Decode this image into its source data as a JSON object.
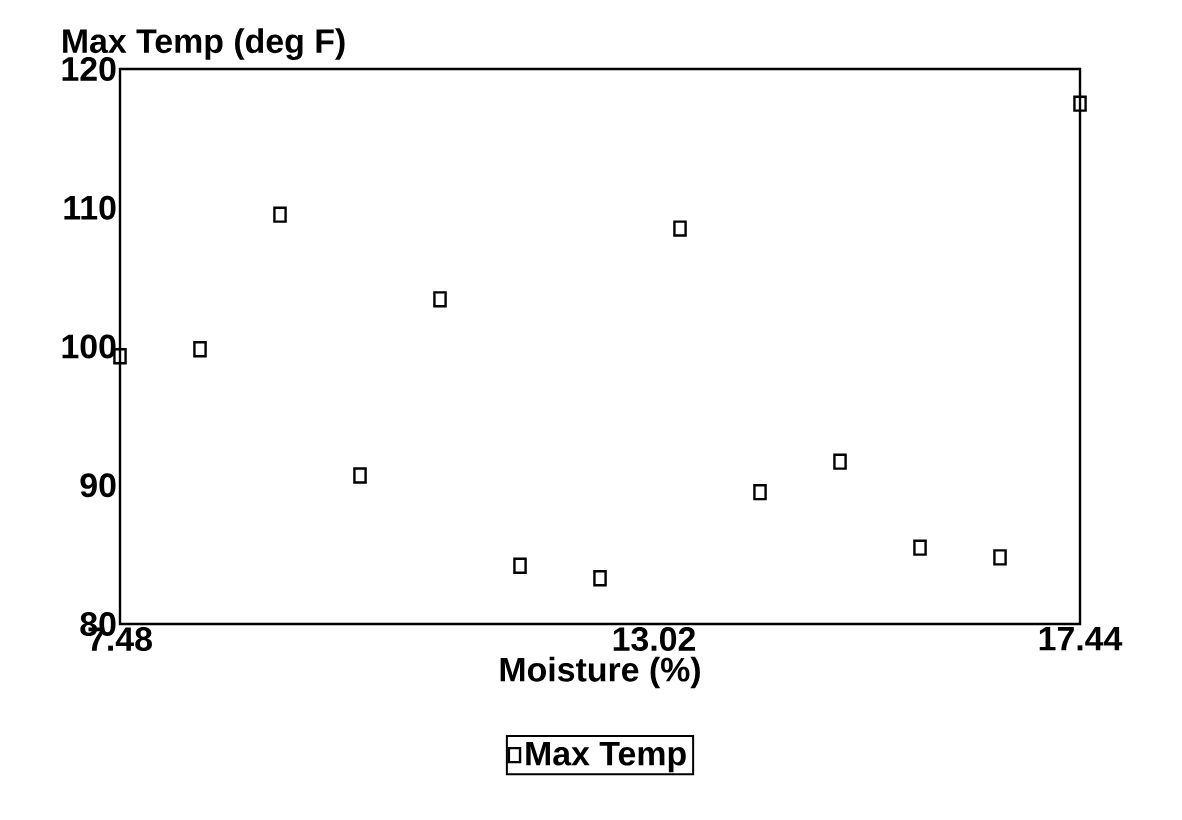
{
  "chart_data": {
    "type": "scatter",
    "ylabel": "Max Temp (deg F)",
    "xlabel": "Moisture (%)",
    "x": [
      7.48,
      8.31,
      9.14,
      9.97,
      10.8,
      11.63,
      12.46,
      13.29,
      14.12,
      14.95,
      15.78,
      16.61,
      17.44
    ],
    "series": [
      {
        "name": "Max Temp",
        "color": "#000000",
        "values": [
          99.3,
          99.8,
          109.5,
          90.7,
          103.4,
          84.2,
          83.3,
          108.5,
          89.5,
          91.7,
          85.5,
          84.8,
          117.5
        ]
      }
    ],
    "xlim": [
      7.48,
      17.44
    ],
    "xticks": [
      7.48,
      13.02,
      17.44
    ],
    "ylim": [
      80,
      120
    ],
    "yticks": [
      80,
      90,
      100,
      110,
      120
    ],
    "marker": "square",
    "legend": "bottom",
    "grid": false
  }
}
